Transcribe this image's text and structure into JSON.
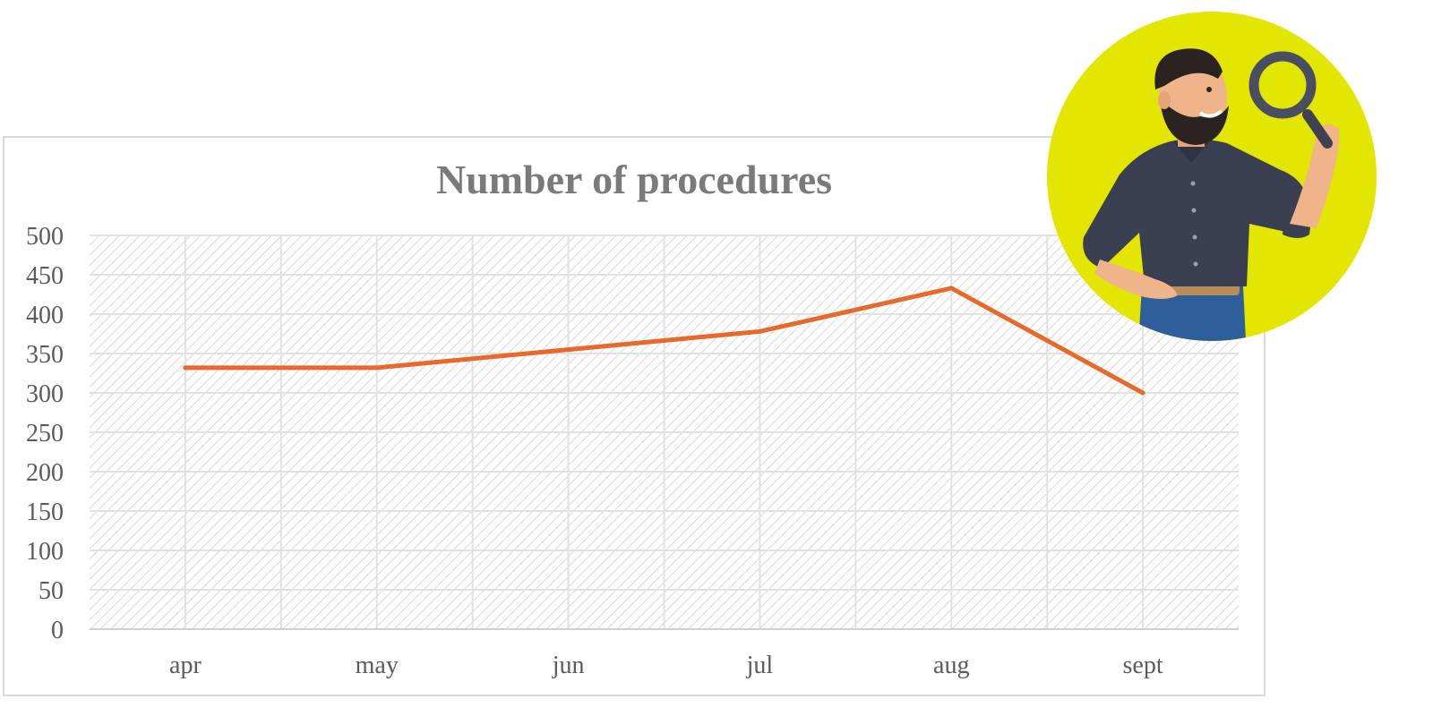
{
  "chart_data": {
    "type": "line",
    "title": "Number of procedures",
    "categories": [
      "apr",
      "may",
      "jun",
      "jul",
      "aug",
      "sept"
    ],
    "series": [
      {
        "values": [
          332,
          332,
          355,
          378,
          433,
          300
        ],
        "color": "#e8692c"
      }
    ],
    "ylim": [
      0,
      500
    ],
    "y_ticks": [
      0,
      50,
      100,
      150,
      200,
      250,
      300,
      350,
      400,
      450,
      500
    ],
    "grid": true,
    "xlabel": "",
    "ylabel": ""
  },
  "illustration": {
    "description_icon": "man-with-magnifying-glass-icon",
    "circle_color": "#e2e600"
  }
}
